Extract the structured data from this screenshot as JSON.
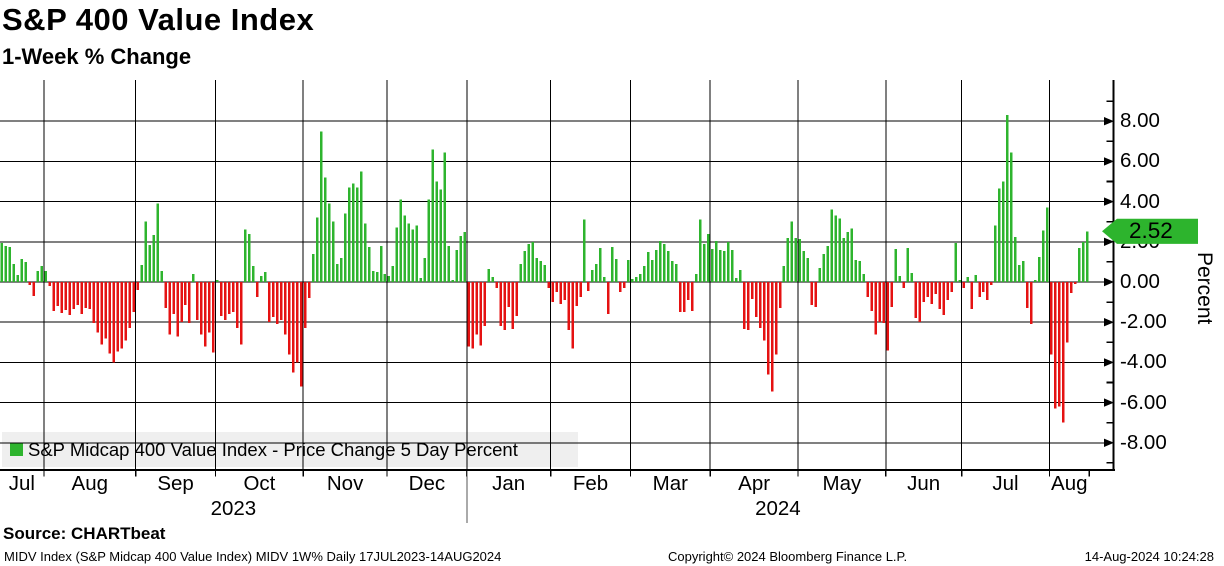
{
  "title": "S&P 400 Value Index",
  "subtitle": "1-Week % Change",
  "legend": {
    "label": "S&P Midcap 400 Value Index - Price Change 5 Day Percent"
  },
  "axis": {
    "percent_label": "Percent",
    "last_value_label": "2.52"
  },
  "source": "Source: CHARTbeat",
  "footer": {
    "left": "MIDV Index (S&P Midcap 400 Value Index) MIDV 1W%  Daily 17JUL2023-14AUG2024",
    "center": "Copyright© 2024 Bloomberg Finance L.P.",
    "right": "14-Aug-2024 10:24:28"
  },
  "colors": {
    "positive": "#2eb42e",
    "negative": "#e51212",
    "tag": "#2db42d",
    "legend_bg": "#efefef",
    "grid": "#000000"
  },
  "chart_data": {
    "type": "bar",
    "title": "S&P 400 Value Index",
    "subtitle": "1-Week % Change",
    "series_name": "S&P Midcap 400 Value Index - Price Change 5 Day Percent",
    "ylabel": "Percent",
    "ylim": [
      -9.4,
      10.0
    ],
    "y_ticks": [
      8,
      6,
      4,
      2,
      0,
      -2,
      -4,
      -6,
      -8
    ],
    "y_tick_labels": [
      "8.00",
      "6.00",
      "4.00",
      "2.00",
      "0.00",
      "-2.00",
      "-4.00",
      "-6.00",
      "-8.00"
    ],
    "grid": "on",
    "legend_position": "bottom-left",
    "last_value": 2.52,
    "months": [
      {
        "label": "Jul",
        "year": "2023",
        "days": 11,
        "values": [
          1.95,
          1.8,
          1.75,
          0.9,
          0.35,
          1.15,
          1.0,
          -0.15,
          -0.7,
          0.55,
          0.8
        ]
      },
      {
        "label": "Aug",
        "year": "2023",
        "days": 23,
        "values": [
          0.55,
          -0.2,
          -1.45,
          -1.2,
          -1.55,
          -1.4,
          -1.65,
          -1.35,
          -1.15,
          -1.6,
          -1.3,
          -1.35,
          -2.05,
          -2.5,
          -3.1,
          -2.8,
          -3.55,
          -4.0,
          -3.45,
          -3.3,
          -2.9,
          -2.3,
          -1.5
        ]
      },
      {
        "label": "Sep",
        "year": "2023",
        "days": 20,
        "values": [
          -0.4,
          0.85,
          3.0,
          1.85,
          2.35,
          3.9,
          0.55,
          -1.3,
          -2.6,
          -1.6,
          -2.7,
          -2.0,
          -1.15,
          -2.05,
          0.4,
          -1.9,
          -2.6,
          -3.2,
          -2.5,
          -3.5
        ]
      },
      {
        "label": "Oct",
        "year": "2023",
        "days": 22,
        "values": [
          0.1,
          -1.7,
          -1.9,
          -1.6,
          -1.5,
          -2.3,
          -3.1,
          2.6,
          2.4,
          0.8,
          -0.75,
          0.3,
          0.5,
          -2.0,
          -1.75,
          -2.1,
          -1.9,
          -2.6,
          -3.6,
          -4.5,
          -4.0,
          -5.2
        ]
      },
      {
        "label": "Nov",
        "year": "2023",
        "days": 21,
        "values": [
          -2.3,
          -0.8,
          1.4,
          3.2,
          7.5,
          5.2,
          3.9,
          3.0,
          0.9,
          1.2,
          3.4,
          4.7,
          4.9,
          4.7,
          5.5,
          2.9,
          1.75,
          0.55,
          0.5,
          1.8,
          0.4
        ]
      },
      {
        "label": "Dec",
        "year": "2023",
        "days": 20,
        "values": [
          0.3,
          0.8,
          2.7,
          4.1,
          3.3,
          2.9,
          2.6,
          2.8,
          0.2,
          1.2,
          4.1,
          6.6,
          5.0,
          4.6,
          6.45,
          1.8,
          0.1,
          1.6,
          2.3,
          2.5
        ]
      },
      {
        "label": "Jan",
        "year": "2024",
        "days": 21,
        "values": [
          -3.2,
          -3.3,
          -2.6,
          -3.15,
          -2.2,
          0.65,
          0.25,
          -0.3,
          -2.2,
          -2.4,
          -1.25,
          -2.35,
          -1.7,
          0.9,
          1.55,
          1.9,
          2.0,
          1.2,
          1.05,
          0.85,
          -0.3
        ]
      },
      {
        "label": "Feb",
        "year": "2024",
        "days": 20,
        "values": [
          -1.0,
          -0.5,
          -1.1,
          -0.9,
          -2.4,
          -3.3,
          -1.2,
          -0.75,
          3.1,
          -0.45,
          0.6,
          0.9,
          1.7,
          0.25,
          -1.6,
          1.75,
          1.15,
          -0.5,
          -0.3,
          1.1
        ]
      },
      {
        "label": "Mar",
        "year": "2024",
        "days": 20,
        "values": [
          0.15,
          0.25,
          0.4,
          0.8,
          1.5,
          1.1,
          1.6,
          2.05,
          1.9,
          1.55,
          1.05,
          0.9,
          -1.5,
          -1.5,
          -0.9,
          -1.45,
          0.4,
          3.1,
          1.9,
          2.4
        ]
      },
      {
        "label": "Apr",
        "year": "2024",
        "days": 22,
        "values": [
          1.65,
          2.05,
          1.6,
          1.55,
          2.0,
          1.6,
          0.2,
          0.6,
          -2.35,
          -2.4,
          -0.85,
          -1.75,
          -2.3,
          -2.9,
          -4.6,
          -5.45,
          -3.6,
          -1.3,
          0.8,
          2.2,
          3.0,
          2.2
        ]
      },
      {
        "label": "May",
        "year": "2024",
        "days": 22,
        "values": [
          2.15,
          1.55,
          1.2,
          -1.15,
          -1.25,
          0.7,
          1.4,
          1.8,
          3.6,
          3.3,
          3.15,
          2.2,
          2.5,
          2.65,
          1.1,
          1.05,
          0.4,
          -0.75,
          -1.45,
          -2.6,
          -2.0,
          -2.05
        ]
      },
      {
        "label": "Jun",
        "year": "2024",
        "days": 19,
        "values": [
          -3.4,
          -1.25,
          1.65,
          0.3,
          -0.3,
          1.7,
          0.45,
          -1.8,
          -2.0,
          -1.0,
          -0.75,
          -1.1,
          -0.6,
          -1.35,
          -1.65,
          -0.9,
          -0.5,
          1.95,
          0.1
        ]
      },
      {
        "label": "Jul",
        "year": "2024",
        "days": 22,
        "values": [
          -0.3,
          0.25,
          -1.35,
          0.35,
          -0.75,
          -0.5,
          -0.9,
          -0.15,
          2.8,
          4.65,
          5.0,
          8.3,
          6.45,
          2.25,
          0.85,
          1.05,
          -1.3,
          -2.1,
          0.1,
          1.25,
          2.55,
          3.7
        ]
      },
      {
        "label": "Aug",
        "year": "2024",
        "days": 10,
        "values": [
          -3.6,
          -6.3,
          -6.2,
          -7.0,
          -3.0,
          -0.55,
          -0.1,
          1.7,
          2.0,
          2.52
        ]
      }
    ]
  }
}
